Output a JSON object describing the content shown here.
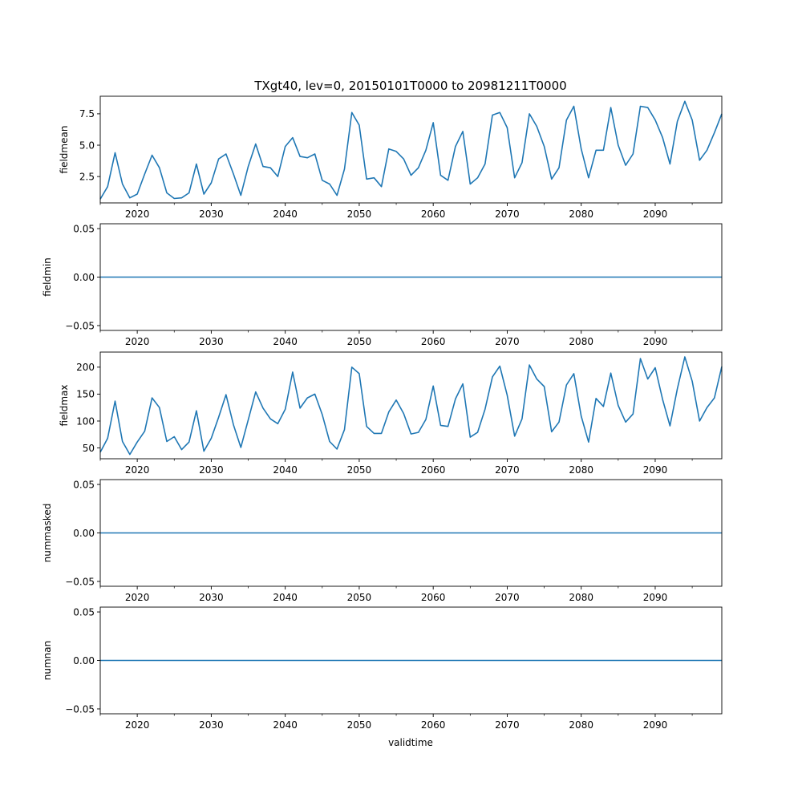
{
  "figure": {
    "title": "TXgt40, lev=0, 20150101T0000 to 20981211T0000",
    "xlabel": "validtime",
    "line_color": "#1f77b4"
  },
  "chart_data": [
    {
      "type": "line",
      "ylabel": "fieldmean",
      "xlim": [
        2015,
        2099
      ],
      "ylim": [
        0.4,
        8.9
      ],
      "yticks": [
        2.5,
        5.0,
        7.5
      ],
      "ytick_labels": [
        "2.5",
        "5.0",
        "7.5"
      ],
      "xticks": [
        2020,
        2030,
        2040,
        2050,
        2060,
        2070,
        2080,
        2090
      ],
      "xtick_labels": [
        "2020",
        "2030",
        "2040",
        "2050",
        "2060",
        "2070",
        "2080",
        "2090"
      ],
      "x": [
        2015,
        2016,
        2017,
        2018,
        2019,
        2020,
        2021,
        2022,
        2023,
        2024,
        2025,
        2026,
        2027,
        2028,
        2029,
        2030,
        2031,
        2032,
        2033,
        2034,
        2035,
        2036,
        2037,
        2038,
        2039,
        2040,
        2041,
        2042,
        2043,
        2044,
        2045,
        2046,
        2047,
        2048,
        2049,
        2050,
        2051,
        2052,
        2053,
        2054,
        2055,
        2056,
        2057,
        2058,
        2059,
        2060,
        2061,
        2062,
        2063,
        2064,
        2065,
        2066,
        2067,
        2068,
        2069,
        2070,
        2071,
        2072,
        2073,
        2074,
        2075,
        2076,
        2077,
        2078,
        2079,
        2080,
        2081,
        2082,
        2083,
        2084,
        2085,
        2086,
        2087,
        2088,
        2089,
        2090,
        2091,
        2092,
        2093,
        2094,
        2095,
        2096,
        2097,
        2098,
        2099
      ],
      "values": [
        0.7,
        1.7,
        4.4,
        1.9,
        0.8,
        1.1,
        2.7,
        4.2,
        3.2,
        1.2,
        0.75,
        0.8,
        1.2,
        3.5,
        1.1,
        2.0,
        3.9,
        4.3,
        2.7,
        1.0,
        3.3,
        5.1,
        3.3,
        3.2,
        2.5,
        4.9,
        5.6,
        4.1,
        4.0,
        4.3,
        2.2,
        1.9,
        1.0,
        3.1,
        7.6,
        6.6,
        2.3,
        2.4,
        1.7,
        4.7,
        4.5,
        3.9,
        2.6,
        3.2,
        4.6,
        6.8,
        2.6,
        2.2,
        4.9,
        6.1,
        1.9,
        2.4,
        3.5,
        7.4,
        7.6,
        6.4,
        2.4,
        3.6,
        7.5,
        6.5,
        4.9,
        2.3,
        3.2,
        7.0,
        8.1,
        4.7,
        2.4,
        4.6,
        4.6,
        8.0,
        5.0,
        3.4,
        4.3,
        8.1,
        8.0,
        7.0,
        5.6,
        3.5,
        6.9,
        8.5,
        7.0,
        3.8,
        4.6,
        6.0,
        7.5
      ]
    },
    {
      "type": "line",
      "ylabel": "fieldmin",
      "xlim": [
        2015,
        2099
      ],
      "ylim": [
        -0.055,
        0.055
      ],
      "yticks": [
        -0.05,
        0.0,
        0.05
      ],
      "ytick_labels": [
        "−0.05",
        "0.00",
        "0.05"
      ],
      "xticks": [
        2020,
        2030,
        2040,
        2050,
        2060,
        2070,
        2080,
        2090
      ],
      "xtick_labels": [
        "2020",
        "2030",
        "2040",
        "2050",
        "2060",
        "2070",
        "2080",
        "2090"
      ],
      "x": [
        2015,
        2099
      ],
      "values": [
        0,
        0
      ]
    },
    {
      "type": "line",
      "ylabel": "fieldmax",
      "xlim": [
        2015,
        2099
      ],
      "ylim": [
        30,
        228
      ],
      "yticks": [
        50,
        100,
        150,
        200
      ],
      "ytick_labels": [
        "50",
        "100",
        "150",
        "200"
      ],
      "xticks": [
        2020,
        2030,
        2040,
        2050,
        2060,
        2070,
        2080,
        2090
      ],
      "xtick_labels": [
        "2020",
        "2030",
        "2040",
        "2050",
        "2060",
        "2070",
        "2080",
        "2090"
      ],
      "x": [
        2015,
        2016,
        2017,
        2018,
        2019,
        2020,
        2021,
        2022,
        2023,
        2024,
        2025,
        2026,
        2027,
        2028,
        2029,
        2030,
        2031,
        2032,
        2033,
        2034,
        2035,
        2036,
        2037,
        2038,
        2039,
        2040,
        2041,
        2042,
        2043,
        2044,
        2045,
        2046,
        2047,
        2048,
        2049,
        2050,
        2051,
        2052,
        2053,
        2054,
        2055,
        2056,
        2057,
        2058,
        2059,
        2060,
        2061,
        2062,
        2063,
        2064,
        2065,
        2066,
        2067,
        2068,
        2069,
        2070,
        2071,
        2072,
        2073,
        2074,
        2075,
        2076,
        2077,
        2078,
        2079,
        2080,
        2081,
        2082,
        2083,
        2084,
        2085,
        2086,
        2087,
        2088,
        2089,
        2090,
        2091,
        2092,
        2093,
        2094,
        2095,
        2096,
        2097,
        2098,
        2099
      ],
      "values": [
        42,
        68,
        137,
        62,
        38,
        61,
        81,
        143,
        125,
        62,
        71,
        47,
        61,
        119,
        44,
        68,
        107,
        149,
        93,
        51,
        102,
        154,
        124,
        104,
        95,
        122,
        191,
        124,
        143,
        150,
        112,
        62,
        48,
        84,
        200,
        188,
        90,
        77,
        77,
        117,
        139,
        114,
        76,
        79,
        103,
        165,
        92,
        90,
        141,
        169,
        70,
        79,
        122,
        182,
        202,
        148,
        72,
        104,
        204,
        178,
        164,
        80,
        98,
        167,
        188,
        109,
        61,
        142,
        127,
        189,
        129,
        98,
        113,
        216,
        178,
        199,
        140,
        91,
        160,
        219,
        174,
        100,
        125,
        143,
        201
      ]
    },
    {
      "type": "line",
      "ylabel": "nummasked",
      "xlim": [
        2015,
        2099
      ],
      "ylim": [
        -0.055,
        0.055
      ],
      "yticks": [
        -0.05,
        0.0,
        0.05
      ],
      "ytick_labels": [
        "−0.05",
        "0.00",
        "0.05"
      ],
      "xticks": [
        2020,
        2030,
        2040,
        2050,
        2060,
        2070,
        2080,
        2090
      ],
      "xtick_labels": [
        "2020",
        "2030",
        "2040",
        "2050",
        "2060",
        "2070",
        "2080",
        "2090"
      ],
      "x": [
        2015,
        2099
      ],
      "values": [
        0,
        0
      ]
    },
    {
      "type": "line",
      "ylabel": "numnan",
      "xlim": [
        2015,
        2099
      ],
      "ylim": [
        -0.055,
        0.055
      ],
      "yticks": [
        -0.05,
        0.0,
        0.05
      ],
      "ytick_labels": [
        "−0.05",
        "0.00",
        "0.05"
      ],
      "xticks": [
        2020,
        2030,
        2040,
        2050,
        2060,
        2070,
        2080,
        2090
      ],
      "xtick_labels": [
        "2020",
        "2030",
        "2040",
        "2050",
        "2060",
        "2070",
        "2080",
        "2090"
      ],
      "x": [
        2015,
        2099
      ],
      "values": [
        0,
        0
      ]
    }
  ]
}
